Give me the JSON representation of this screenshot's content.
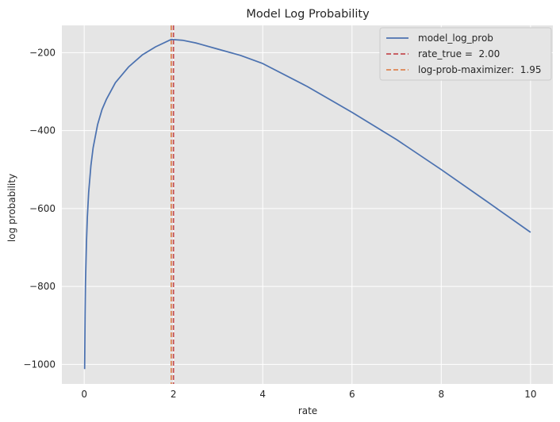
{
  "chart_data": {
    "type": "line",
    "title": "Model Log Probability",
    "xlabel": "rate",
    "ylabel": "log probability",
    "xlim": [
      -0.5,
      10.5
    ],
    "ylim": [
      -1050,
      -130
    ],
    "x_ticks": [
      0,
      2,
      4,
      6,
      8,
      10
    ],
    "x_tick_labels": [
      "0",
      "2",
      "4",
      "6",
      "8",
      "10"
    ],
    "y_ticks": [
      -1000,
      -800,
      -600,
      -400,
      -200
    ],
    "y_tick_labels": [
      "−1000",
      "−800",
      "−600",
      "−400",
      "−200"
    ],
    "grid": true,
    "legend_position": "top-right",
    "series": [
      {
        "name": "model_log_prob",
        "kind": "line",
        "color": "#4c72b0",
        "x": [
          0.01,
          0.02,
          0.03,
          0.05,
          0.07,
          0.1,
          0.15,
          0.2,
          0.3,
          0.4,
          0.5,
          0.7,
          1.0,
          1.3,
          1.6,
          1.95,
          2.2,
          2.5,
          3.0,
          3.5,
          4.0,
          5.0,
          6.0,
          7.0,
          8.0,
          9.0,
          10.0
        ],
        "y": [
          -1012,
          -870,
          -789,
          -687,
          -623,
          -558,
          -490,
          -444,
          -385,
          -346,
          -319,
          -277,
          -236,
          -206,
          -185,
          -166,
          -168,
          -175,
          -191,
          -207,
          -228,
          -287,
          -353,
          -423,
          -500,
          -580,
          -661
        ]
      }
    ],
    "vlines": [
      {
        "name": "rate_true",
        "label": "rate_true =  2.00",
        "x": 2.0,
        "color": "#c44e52",
        "style": "dashed"
      },
      {
        "name": "log-prob-maximizer",
        "label": "log-prob-maximizer:  1.95",
        "x": 1.95,
        "color": "#dd8452",
        "style": "dashed"
      }
    ]
  }
}
